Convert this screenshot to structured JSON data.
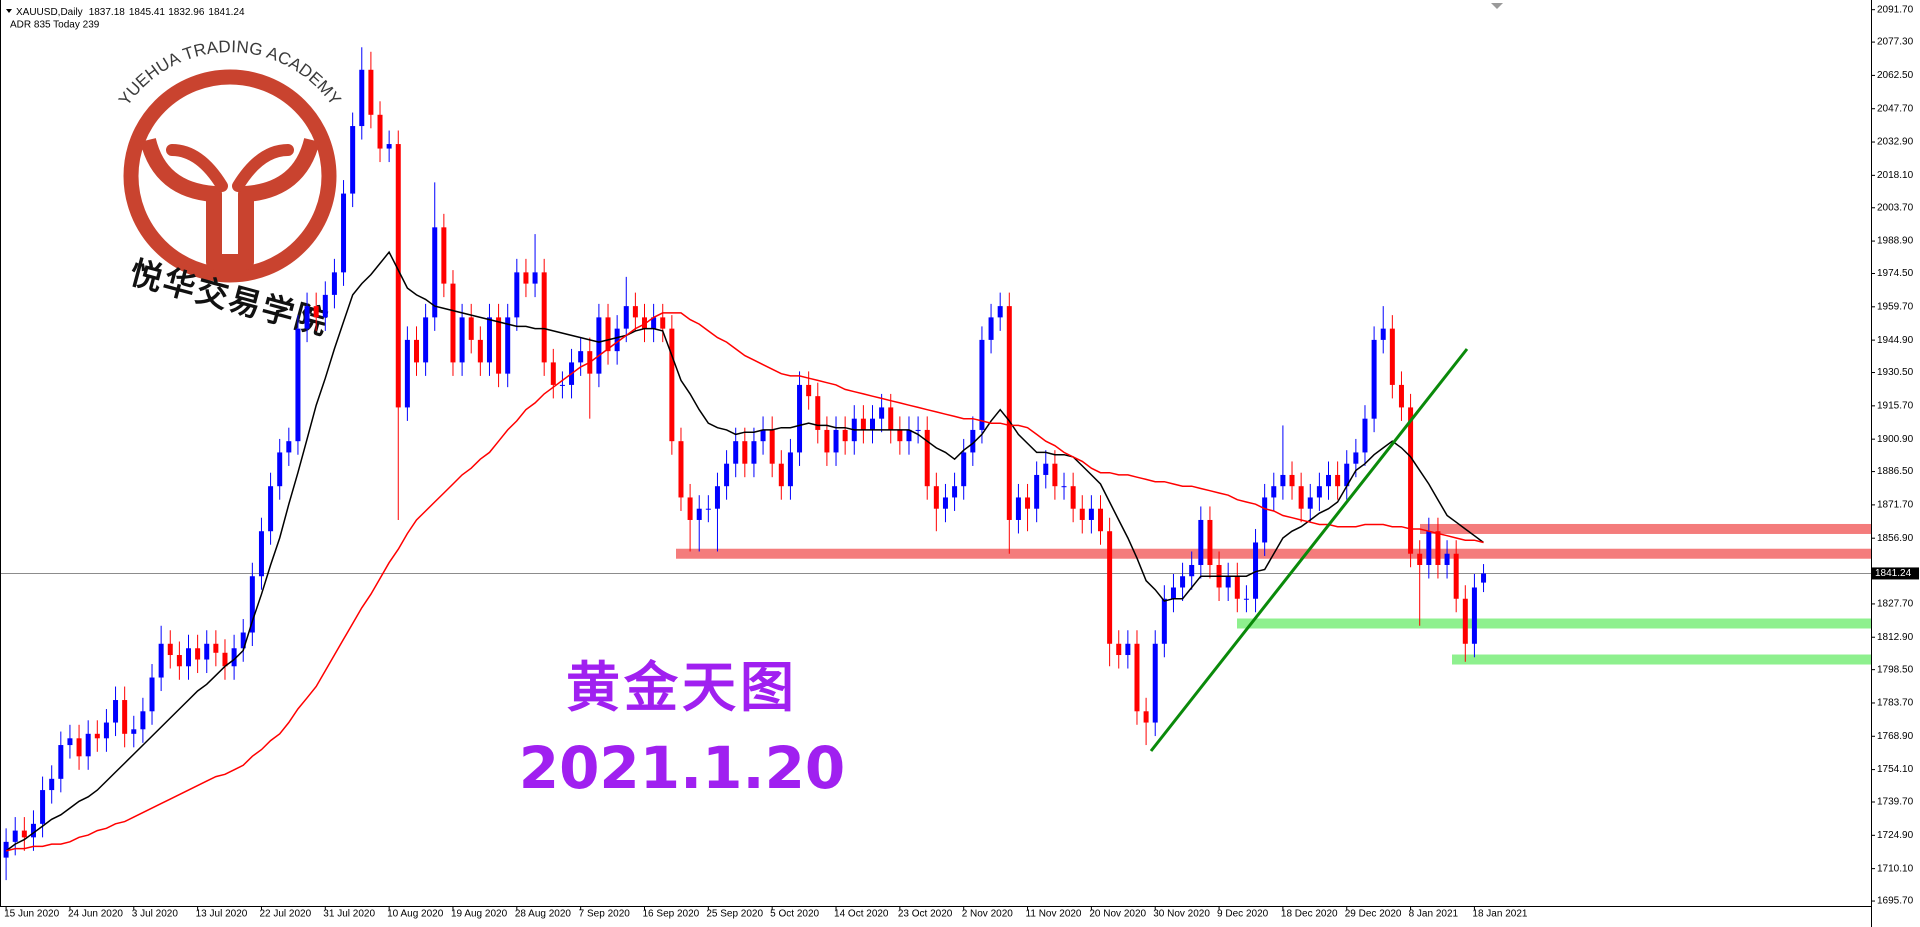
{
  "chart_data": {
    "type": "candlestick",
    "symbol": "XAUUSD,Daily",
    "indicator_text": "ADR 835  Today 239",
    "categories": [
      "15 Jun 2020",
      null,
      null,
      null,
      null,
      null,
      null,
      "24 Jun 2020",
      null,
      null,
      null,
      null,
      null,
      null,
      "3 Jul 2020",
      null,
      null,
      null,
      null,
      null,
      null,
      "13 Jul 2020",
      null,
      null,
      null,
      null,
      null,
      null,
      "22 Jul 2020",
      null,
      null,
      null,
      null,
      null,
      null,
      "31 Jul 2020",
      null,
      null,
      null,
      null,
      null,
      null,
      "10 Aug 2020",
      null,
      null,
      null,
      null,
      null,
      null,
      "19 Aug 2020",
      null,
      null,
      null,
      null,
      null,
      null,
      "28 Aug 2020",
      null,
      null,
      null,
      null,
      null,
      null,
      "7 Sep 2020",
      null,
      null,
      null,
      null,
      null,
      null,
      "16 Sep 2020",
      null,
      null,
      null,
      null,
      null,
      null,
      "25 Sep 2020",
      null,
      null,
      null,
      null,
      null,
      null,
      "5 Oct 2020",
      null,
      null,
      null,
      null,
      null,
      null,
      "14 Oct 2020",
      null,
      null,
      null,
      null,
      null,
      null,
      "23 Oct 2020",
      null,
      null,
      null,
      null,
      null,
      null,
      "2 Nov 2020",
      null,
      null,
      null,
      null,
      null,
      null,
      "11 Nov 2020",
      null,
      null,
      null,
      null,
      null,
      null,
      "20 Nov 2020",
      null,
      null,
      null,
      null,
      null,
      null,
      "30 Nov 2020",
      null,
      null,
      null,
      null,
      null,
      null,
      "9 Dec 2020",
      null,
      null,
      null,
      null,
      null,
      null,
      "18 Dec 2020",
      null,
      null,
      null,
      null,
      null,
      null,
      "29 Dec 2020",
      null,
      null,
      null,
      null,
      null,
      null,
      "8 Jan 2021",
      null,
      null,
      null,
      null,
      null,
      null,
      "18 Jan 2021",
      null
    ],
    "open": [
      1715,
      1722,
      1727,
      1724,
      1730,
      1745,
      1750,
      1765,
      1768,
      1760,
      1770,
      1768,
      1775,
      1785,
      1770,
      1772,
      1780,
      1795,
      1810,
      1805,
      1800,
      1808,
      1803,
      1810,
      1806,
      1800,
      1808,
      1815,
      1840,
      1860,
      1880,
      1895,
      1900,
      1950,
      1960,
      1955,
      1965,
      1975,
      2010,
      2040,
      2065,
      2045,
      2030,
      2032,
      1915,
      1945,
      1935,
      1955,
      1995,
      1970,
      1935,
      1955,
      1945,
      1935,
      1955,
      1930,
      1955,
      1975,
      1970,
      1975,
      1935,
      1925,
      1925,
      1935,
      1940,
      1930,
      1955,
      1940,
      1950,
      1960,
      1955,
      1950,
      1955,
      1950,
      1900,
      1875,
      1865,
      1870,
      1870,
      1880,
      1890,
      1900,
      1890,
      1900,
      1905,
      1890,
      1880,
      1895,
      1925,
      1920,
      1905,
      1895,
      1905,
      1900,
      1910,
      1905,
      1910,
      1915,
      1905,
      1900,
      1905,
      1905,
      1880,
      1870,
      1875,
      1880,
      1895,
      1905,
      1945,
      1955,
      1960,
      1865,
      1875,
      1870,
      1885,
      1890,
      1880,
      1880,
      1870,
      1865,
      1870,
      1860,
      1810,
      1805,
      1810,
      1780,
      1775,
      1810,
      1830,
      1835,
      1840,
      1845,
      1865,
      1845,
      1835,
      1840,
      1830,
      1830,
      1855,
      1875,
      1880,
      1885,
      1880,
      1870,
      1875,
      1880,
      1885,
      1880,
      1890,
      1895,
      1910,
      1945,
      1950,
      1925,
      1915,
      1850,
      1845,
      1860,
      1845,
      1850,
      1830,
      1810,
      1837.18
    ],
    "high": [
      1728,
      1733,
      1733,
      1736,
      1751,
      1756,
      1771,
      1774,
      1774,
      1776,
      1776,
      1781,
      1791,
      1791,
      1778,
      1786,
      1801,
      1818,
      1816,
      1811,
      1814,
      1814,
      1816,
      1816,
      1812,
      1814,
      1821,
      1846,
      1866,
      1886,
      1901,
      1906,
      1956,
      1966,
      1966,
      1971,
      1981,
      2016,
      2046,
      2075,
      2073,
      2051,
      2038,
      2038,
      1951,
      1951,
      1961,
      2015,
      2001,
      1976,
      1961,
      1961,
      1951,
      1961,
      1961,
      1961,
      1981,
      1981,
      1992,
      1981,
      1941,
      1931,
      1941,
      1946,
      1946,
      1961,
      1961,
      1956,
      1973,
      1966,
      1961,
      1961,
      1961,
      1956,
      1906,
      1881,
      1876,
      1876,
      1886,
      1896,
      1906,
      1906,
      1906,
      1911,
      1911,
      1896,
      1901,
      1931,
      1931,
      1926,
      1911,
      1911,
      1911,
      1916,
      1916,
      1916,
      1921,
      1921,
      1911,
      1911,
      1911,
      1911,
      1886,
      1881,
      1886,
      1901,
      1911,
      1951,
      1961,
      1966,
      1966,
      1881,
      1881,
      1891,
      1896,
      1896,
      1886,
      1886,
      1876,
      1876,
      1876,
      1866,
      1816,
      1816,
      1816,
      1786,
      1816,
      1836,
      1841,
      1846,
      1851,
      1871,
      1871,
      1851,
      1846,
      1846,
      1836,
      1861,
      1881,
      1886,
      1907,
      1891,
      1886,
      1881,
      1886,
      1891,
      1891,
      1896,
      1901,
      1916,
      1951,
      1960,
      1956,
      1931,
      1921,
      1856,
      1866,
      1866,
      1856,
      1856,
      1836,
      1841,
      1845.41
    ],
    "low": [
      1705,
      1716,
      1718,
      1718,
      1724,
      1739,
      1744,
      1759,
      1754,
      1754,
      1762,
      1762,
      1769,
      1764,
      1764,
      1766,
      1774,
      1789,
      1799,
      1794,
      1794,
      1797,
      1797,
      1800,
      1794,
      1794,
      1802,
      1809,
      1834,
      1854,
      1874,
      1889,
      1894,
      1944,
      1949,
      1949,
      1959,
      1969,
      2004,
      2034,
      2039,
      2024,
      2024,
      1865,
      1909,
      1929,
      1929,
      1949,
      1964,
      1929,
      1929,
      1939,
      1929,
      1929,
      1924,
      1924,
      1949,
      1964,
      1964,
      1929,
      1919,
      1919,
      1919,
      1929,
      1910,
      1924,
      1934,
      1934,
      1944,
      1949,
      1944,
      1944,
      1944,
      1894,
      1869,
      1851,
      1851,
      1864,
      1851,
      1874,
      1884,
      1884,
      1884,
      1894,
      1884,
      1874,
      1874,
      1889,
      1914,
      1899,
      1889,
      1889,
      1894,
      1894,
      1899,
      1899,
      1904,
      1899,
      1894,
      1894,
      1899,
      1874,
      1860,
      1864,
      1869,
      1874,
      1889,
      1899,
      1939,
      1949,
      1850,
      1859,
      1860,
      1864,
      1879,
      1874,
      1874,
      1864,
      1859,
      1859,
      1854,
      1800,
      1799,
      1799,
      1774,
      1765,
      1769,
      1804,
      1824,
      1829,
      1834,
      1839,
      1839,
      1829,
      1829,
      1824,
      1824,
      1824,
      1849,
      1869,
      1874,
      1874,
      1864,
      1864,
      1869,
      1874,
      1874,
      1874,
      1884,
      1889,
      1904,
      1939,
      1919,
      1909,
      1844,
      1818,
      1839,
      1839,
      1839,
      1824,
      1802,
      1804,
      1832.96
    ],
    "close": [
      1722,
      1727,
      1724,
      1730,
      1745,
      1750,
      1765,
      1768,
      1760,
      1770,
      1768,
      1775,
      1785,
      1770,
      1772,
      1780,
      1795,
      1810,
      1805,
      1800,
      1808,
      1803,
      1810,
      1806,
      1800,
      1808,
      1815,
      1840,
      1860,
      1880,
      1895,
      1900,
      1950,
      1960,
      1955,
      1965,
      1975,
      2010,
      2040,
      2065,
      2045,
      2030,
      2032,
      1915,
      1945,
      1935,
      1955,
      1995,
      1970,
      1935,
      1955,
      1945,
      1935,
      1955,
      1930,
      1955,
      1975,
      1970,
      1975,
      1935,
      1925,
      1925,
      1935,
      1940,
      1930,
      1955,
      1940,
      1950,
      1960,
      1955,
      1950,
      1955,
      1950,
      1900,
      1875,
      1865,
      1870,
      1870,
      1880,
      1890,
      1900,
      1890,
      1900,
      1905,
      1890,
      1880,
      1895,
      1925,
      1920,
      1905,
      1895,
      1905,
      1900,
      1910,
      1905,
      1910,
      1915,
      1905,
      1900,
      1905,
      1905,
      1880,
      1870,
      1875,
      1880,
      1895,
      1905,
      1945,
      1955,
      1960,
      1865,
      1875,
      1870,
      1885,
      1890,
      1880,
      1880,
      1870,
      1865,
      1870,
      1860,
      1810,
      1805,
      1810,
      1780,
      1775,
      1810,
      1830,
      1835,
      1840,
      1845,
      1865,
      1845,
      1835,
      1840,
      1830,
      1830,
      1855,
      1875,
      1880,
      1885,
      1880,
      1870,
      1875,
      1880,
      1885,
      1880,
      1890,
      1895,
      1910,
      1945,
      1950,
      1925,
      1915,
      1850,
      1845,
      1860,
      1845,
      1850,
      1830,
      1810,
      1835,
      1841.24
    ],
    "up_color": "#0000ff",
    "down_color": "#ff0000",
    "series": [
      {
        "color": "#000000",
        "values": [
          1718,
          1721,
          1723,
          1726,
          1729,
          1732,
          1734,
          1737,
          1740,
          1742,
          1745,
          1749,
          1753,
          1757,
          1761,
          1765,
          1769,
          1773,
          1777,
          1781,
          1785,
          1789,
          1792,
          1796,
          1800,
          1803,
          1807,
          1820,
          1832,
          1845,
          1857,
          1872,
          1886,
          1901,
          1916,
          1928,
          1941,
          1953,
          1965,
          1970,
          1974,
          1979,
          1984,
          1976,
          1968,
          1965,
          1963,
          1960,
          1959,
          1958,
          1957,
          1956,
          1955,
          1954,
          1953,
          1952,
          1951,
          1951,
          1950,
          1950,
          1949,
          1948,
          1947,
          1946,
          1945,
          1944,
          1945,
          1946,
          1947,
          1949,
          1950,
          1950,
          1949,
          1938,
          1927,
          1921,
          1914,
          1908,
          1906,
          1905,
          1903,
          1904,
          1904,
          1905,
          1905,
          1906,
          1906,
          1907,
          1908,
          1907,
          1907,
          1906,
          1906,
          1905,
          1905,
          1905,
          1905,
          1905,
          1905,
          1905,
          1903,
          1900,
          1897,
          1895,
          1892,
          1896,
          1899,
          1903,
          1909,
          1914,
          1909,
          1903,
          1899,
          1895,
          1895,
          1894,
          1894,
          1893,
          1889,
          1885,
          1881,
          1873,
          1865,
          1857,
          1848,
          1838,
          1834,
          1829,
          1830,
          1830,
          1835,
          1840,
          1840,
          1840,
          1840,
          1840,
          1840,
          1842,
          1843,
          1850,
          1857,
          1860,
          1862,
          1865,
          1868,
          1870,
          1873,
          1880,
          1887,
          1890,
          1894,
          1897,
          1900,
          1897,
          1893,
          1887,
          1881,
          1874,
          1867,
          1864,
          1861,
          1858,
          1855
        ]
      },
      {
        "color": "#ff0000",
        "values": [
          1718,
          1719,
          1719,
          1720,
          1720,
          1721,
          1721,
          1722,
          1724,
          1725,
          1727,
          1728,
          1730,
          1731,
          1733,
          1735,
          1737,
          1739,
          1741,
          1743,
          1745,
          1747,
          1749,
          1751,
          1752,
          1754,
          1756,
          1760,
          1763,
          1767,
          1770,
          1775,
          1781,
          1786,
          1791,
          1798,
          1805,
          1812,
          1819,
          1826,
          1832,
          1839,
          1846,
          1852,
          1859,
          1865,
          1869,
          1873,
          1877,
          1881,
          1885,
          1888,
          1892,
          1895,
          1900,
          1905,
          1909,
          1914,
          1917,
          1921,
          1924,
          1927,
          1930,
          1933,
          1935,
          1938,
          1941,
          1944,
          1947,
          1950,
          1952,
          1955,
          1957,
          1957,
          1957,
          1954,
          1952,
          1949,
          1946,
          1944,
          1941,
          1938,
          1936,
          1934,
          1932,
          1930,
          1929,
          1929,
          1928,
          1927,
          1926,
          1925,
          1923,
          1922,
          1921,
          1920,
          1919,
          1918,
          1917,
          1916,
          1915,
          1914,
          1913,
          1912,
          1911,
          1910,
          1910,
          1909,
          1908,
          1908,
          1907,
          1907,
          1906,
          1903,
          1900,
          1898,
          1895,
          1893,
          1891,
          1888,
          1886,
          1886,
          1885,
          1885,
          1884,
          1883,
          1882,
          1882,
          1881,
          1880,
          1880,
          1879,
          1878,
          1877,
          1876,
          1874,
          1873,
          1872,
          1870,
          1869,
          1867,
          1866,
          1865,
          1864,
          1863,
          1863,
          1862,
          1862,
          1862,
          1863,
          1863,
          1863,
          1862,
          1862,
          1861,
          1861,
          1860,
          1859,
          1858,
          1857,
          1856,
          1856,
          1855
        ]
      }
    ],
    "ylim": [
      1693.5,
      2096
    ],
    "yticks": [
      {
        "value": 2091.7,
        "label": "2091.70"
      },
      {
        "value": 2077.3,
        "label": "2077.30"
      },
      {
        "value": 2062.5,
        "label": "2062.50"
      },
      {
        "value": 2047.7,
        "label": "2047.70"
      },
      {
        "value": 2032.9,
        "label": "2032.90"
      },
      {
        "value": 2018.1,
        "label": "2018.10"
      },
      {
        "value": 2003.7,
        "label": "2003.70"
      },
      {
        "value": 1988.9,
        "label": "1988.90"
      },
      {
        "value": 1974.5,
        "label": "1974.50"
      },
      {
        "value": 1959.7,
        "label": "1959.70"
      },
      {
        "value": 1944.9,
        "label": "1944.90"
      },
      {
        "value": 1930.5,
        "label": "1930.50"
      },
      {
        "value": 1915.7,
        "label": "1915.70"
      },
      {
        "value": 1900.9,
        "label": "1900.90"
      },
      {
        "value": 1886.5,
        "label": "1886.50"
      },
      {
        "value": 1871.7,
        "label": "1871.70"
      },
      {
        "value": 1856.9,
        "label": "1856.90"
      },
      {
        "value": 1827.7,
        "label": "1827.70"
      },
      {
        "value": 1812.9,
        "label": "1812.90"
      },
      {
        "value": 1798.5,
        "label": "1798.50"
      },
      {
        "value": 1783.7,
        "label": "1783.70"
      },
      {
        "value": 1768.9,
        "label": "1768.90"
      },
      {
        "value": 1754.1,
        "label": "1754.10"
      },
      {
        "value": 1739.7,
        "label": "1739.70"
      },
      {
        "value": 1724.9,
        "label": "1724.90"
      },
      {
        "value": 1710.1,
        "label": "1710.10"
      },
      {
        "value": 1695.7,
        "label": "1695.70"
      }
    ],
    "price_line_color": "#8c8c8c",
    "zones": [
      {
        "value": 1861,
        "color": "#f47c7c"
      },
      {
        "value": 1850,
        "color": "#f47c7c"
      },
      {
        "value": 1819,
        "color": "#8ef08e"
      },
      {
        "value": 1803,
        "color": "#8ef08e"
      }
    ],
    "annotations": {
      "title": "黄金天图",
      "date": "2021.1.20"
    }
  },
  "watermark": {
    "arc_text": "YUEHUA TRADING ACADEMY",
    "name": "悦华交易学院"
  }
}
